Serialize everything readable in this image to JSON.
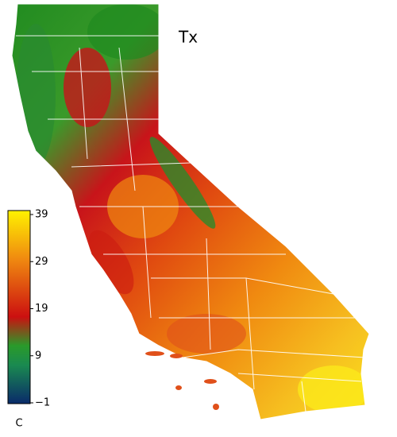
{
  "title": "Tx",
  "colorbar": {
    "range": [
      -1,
      39
    ],
    "ticks": [
      {
        "value": -1,
        "label": "−1"
      },
      9,
      19,
      29,
      39
    ],
    "unit": "C"
  }
}
